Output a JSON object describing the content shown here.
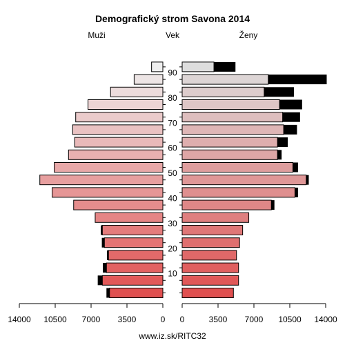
{
  "chart_data": {
    "type": "bar",
    "title": "Demografický strom Savona 2014",
    "left_label": "Muži",
    "center_label": "Vek",
    "right_label": "Ženy",
    "footer": "www.iz.sk/RITC32",
    "age_groups": [
      "0-4",
      "5-9",
      "10-14",
      "15-19",
      "20-24",
      "25-29",
      "30-34",
      "35-39",
      "40-44",
      "45-49",
      "50-54",
      "55-59",
      "60-64",
      "65-69",
      "70-74",
      "75-79",
      "80-84",
      "85-89",
      "90+"
    ],
    "age_tick_labels": [
      "10",
      "20",
      "30",
      "40",
      "50",
      "60",
      "70",
      "80",
      "90"
    ],
    "age_tick_values": [
      10,
      20,
      30,
      40,
      50,
      60,
      70,
      80,
      90
    ],
    "x_tick_labels_left": [
      "14000",
      "10500",
      "7000",
      "3500",
      "0"
    ],
    "x_tick_labels_right": [
      "0",
      "3500",
      "7000",
      "10500",
      "14000"
    ],
    "xlim": [
      0,
      14000
    ],
    "series": [
      {
        "name": "Muži",
        "values": [
          5200,
          5900,
          5500,
          5300,
          5700,
          5900,
          6600,
          8700,
          10800,
          12000,
          10600,
          9200,
          8600,
          8800,
          8500,
          7300,
          5100,
          2800,
          1100
        ],
        "excess": [
          300,
          450,
          350,
          150,
          250,
          150,
          0,
          0,
          0,
          0,
          0,
          0,
          0,
          0,
          0,
          0,
          0,
          0,
          0
        ]
      },
      {
        "name": "Ženy",
        "values": [
          5000,
          5500,
          5500,
          5300,
          5600,
          5900,
          6500,
          8700,
          11000,
          12100,
          10800,
          9300,
          9300,
          9900,
          9800,
          9500,
          8000,
          8400,
          3100
        ],
        "excess": [
          0,
          0,
          0,
          0,
          0,
          0,
          0,
          300,
          300,
          250,
          500,
          400,
          1000,
          1300,
          1700,
          2200,
          2900,
          5700,
          2100
        ]
      }
    ],
    "colors": {
      "male_young": "#e05050",
      "male_old": "#eeeeee",
      "female_young": "#e05050",
      "female_old": "#dddddd",
      "excess": "#000000"
    },
    "grid": false
  }
}
